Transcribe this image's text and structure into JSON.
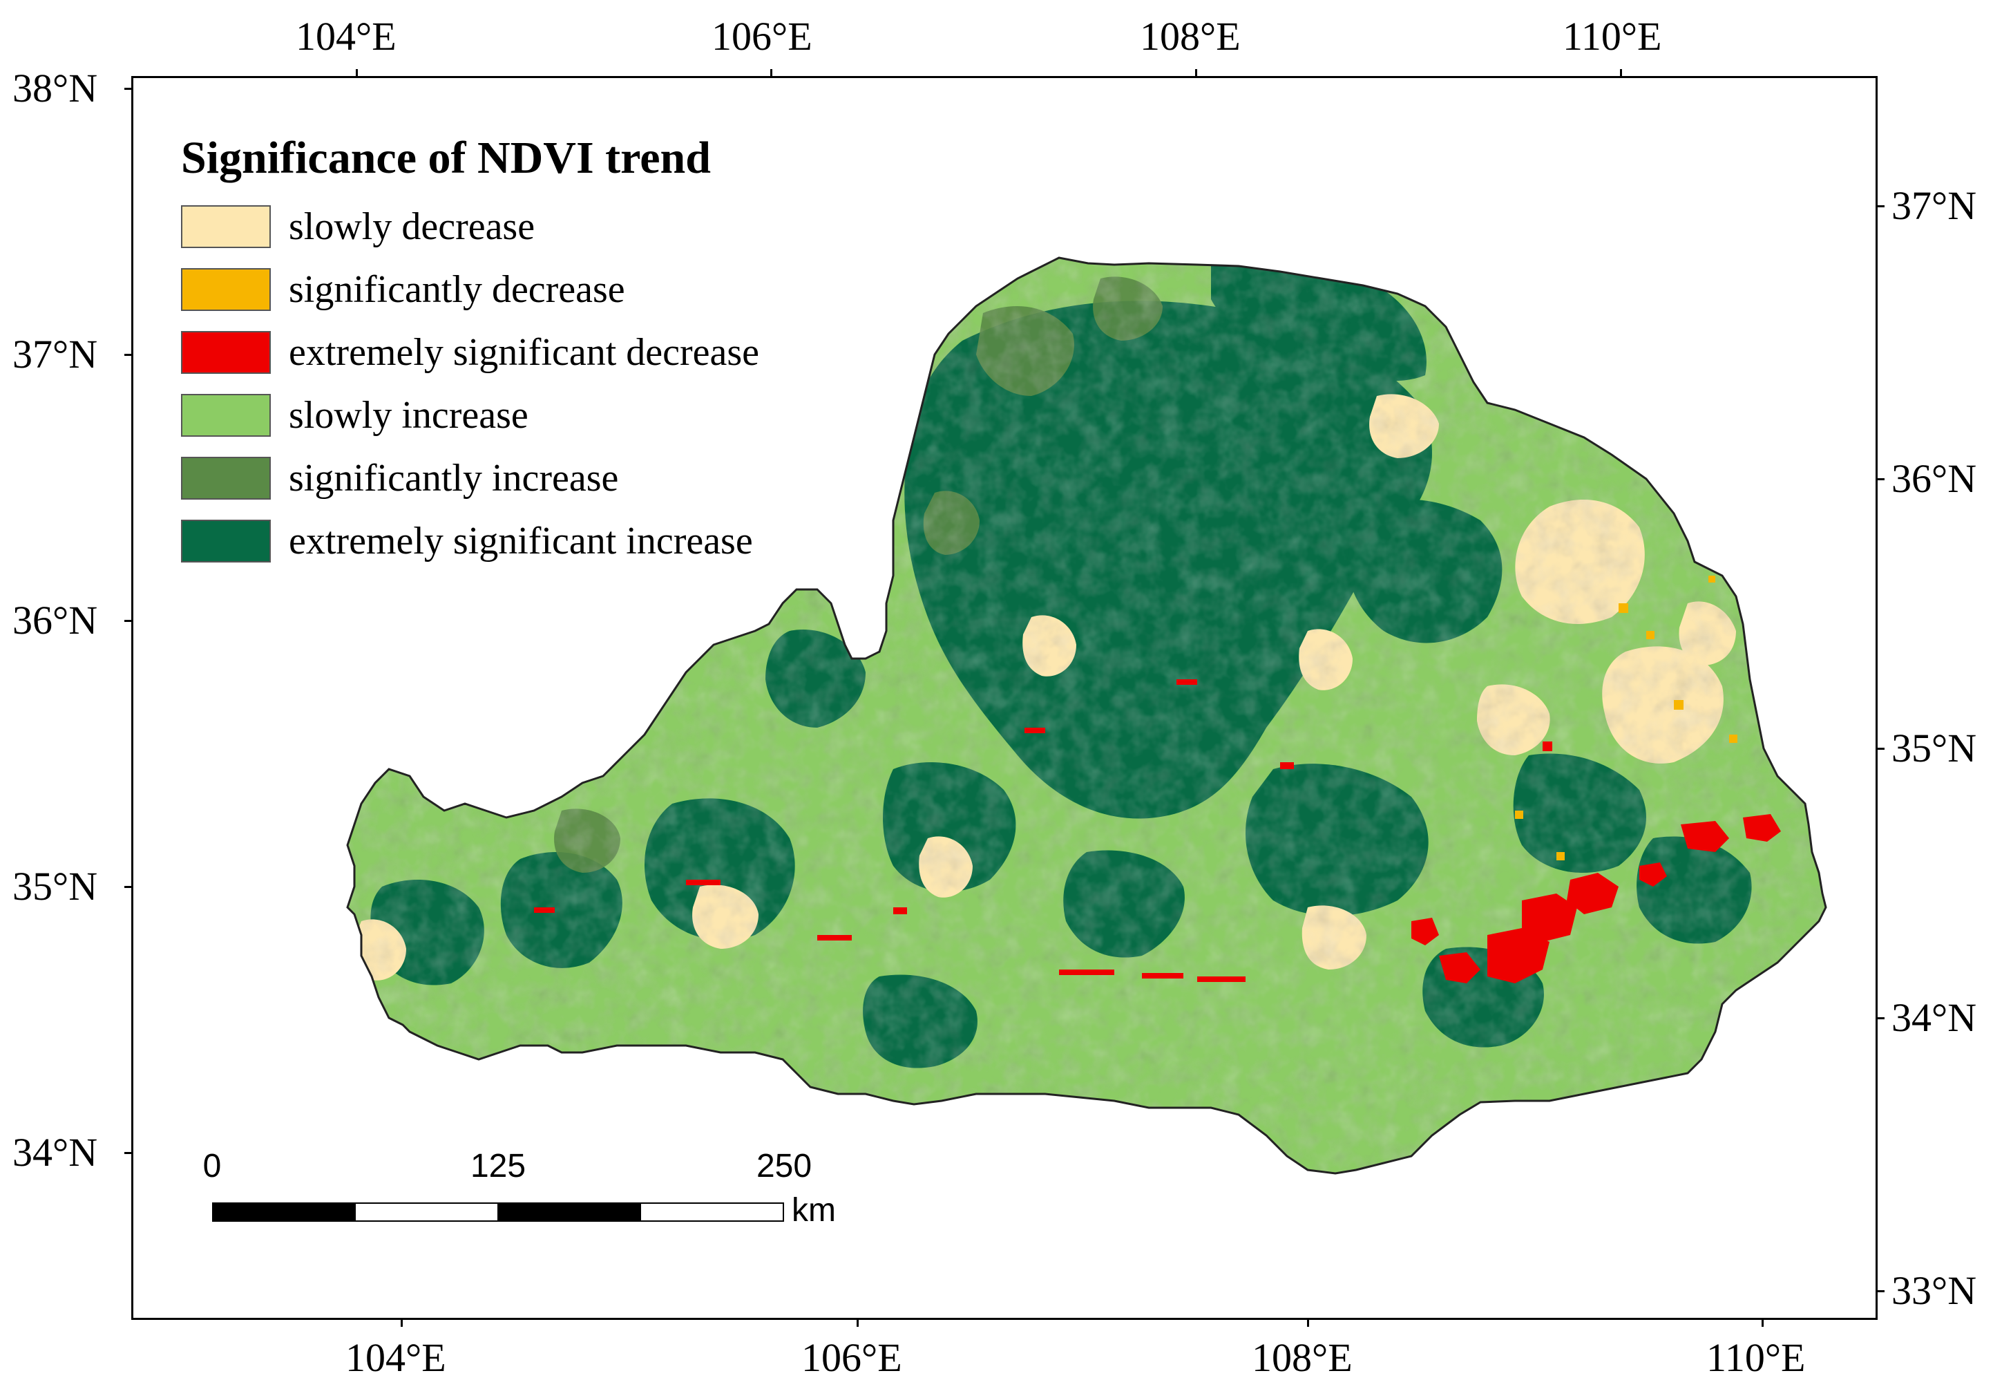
{
  "legend": {
    "title": "Significance of NDVI trend",
    "items": [
      {
        "label": "slowly decrease",
        "color": "#fde7b0"
      },
      {
        "label": "significantly decrease",
        "color": "#f7b500"
      },
      {
        "label": "extremely significant decrease",
        "color": "#ee0000"
      },
      {
        "label": "slowly increase",
        "color": "#8ccc64"
      },
      {
        "label": "significantly increase",
        "color": "#5a8a46"
      },
      {
        "label": "extremely significant increase",
        "color": "#076b45"
      }
    ]
  },
  "axes": {
    "top": [
      "104°E",
      "106°E",
      "108°E",
      "110°E"
    ],
    "bottom": [
      "104°E",
      "106°E",
      "108°E",
      "110°E"
    ],
    "left": [
      "38°N",
      "37°N",
      "36°N",
      "35°N",
      "34°N"
    ],
    "right": [
      "37°N",
      "36°N",
      "35°N",
      "34°N",
      "33°N"
    ]
  },
  "scalebar": {
    "ticks": [
      "0",
      "125",
      "250"
    ],
    "unit": "km"
  }
}
